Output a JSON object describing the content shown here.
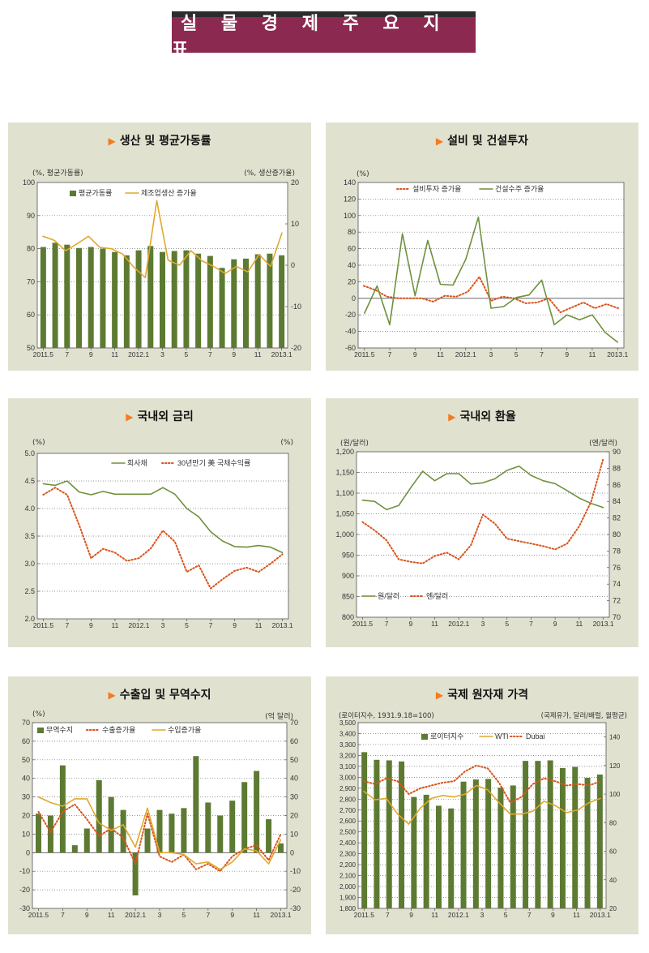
{
  "banner": {
    "title": "실 물 경 제 주 요 지 표"
  },
  "colors": {
    "bar": "#5d7a32",
    "gold": "#e0a82e",
    "green": "#6f913d",
    "red": "#d9541c",
    "panel_bg": "#e1e1d0",
    "plot_bg": "#ffffff",
    "banner_bg": "#8b2950"
  },
  "charts": {
    "production": {
      "title": "생산 및 평균가동률",
      "unit_left": "(%, 평균가동률)",
      "unit_right": "(%, 생산증가율)",
      "chart_data": {
        "type": "bar+line",
        "title": "생산 및 평균가동률",
        "x_labels": [
          "2011.5",
          "7",
          "9",
          "11",
          "2012.1",
          "3",
          "5",
          "7",
          "9",
          "11",
          "2013.1"
        ],
        "left_axis": {
          "range": [
            50,
            100
          ],
          "ticks": [
            50,
            60,
            70,
            80,
            90,
            100
          ]
        },
        "right_axis": {
          "range": [
            -20,
            20
          ],
          "ticks": [
            -20,
            -10,
            0,
            10,
            20
          ]
        },
        "series": [
          {
            "name": "평균가동률",
            "type": "bar",
            "axis": "left",
            "values": [
              80.5,
              81.8,
              81.2,
              80.2,
              80.5,
              80.0,
              79.0,
              78.0,
              79.5,
              80.8,
              79.0,
              79.3,
              79.5,
              78.5,
              77.8,
              74.2,
              76.8,
              77.0,
              78.3,
              78.5,
              78.0
            ]
          },
          {
            "name": "제조업생산 증가율",
            "type": "line",
            "axis": "right",
            "values": [
              7.0,
              6.0,
              3.5,
              5.2,
              7.0,
              4.3,
              4.0,
              2.7,
              -0.5,
              -3.0,
              15.6,
              1.2,
              0.0,
              3.5,
              1.0,
              -0.3,
              -2.0,
              -0.3,
              -1.6,
              2.6,
              -0.3,
              7.8
            ]
          }
        ]
      }
    },
    "investment": {
      "title": "설비 및 건설투자",
      "unit_left": "(%)",
      "chart_data": {
        "type": "line",
        "title": "설비 및 건설투자",
        "x_labels": [
          "2011.5",
          "7",
          "9",
          "11",
          "2012.1",
          "3",
          "5",
          "7",
          "9",
          "11",
          "2013.1"
        ],
        "left_axis": {
          "range": [
            -60,
            140
          ],
          "ticks": [
            -60,
            -40,
            -20,
            0,
            20,
            40,
            60,
            80,
            100,
            120,
            140
          ]
        },
        "series": [
          {
            "name": "설비투자 증가율",
            "type": "dotted",
            "values": [
              15,
              10,
              2,
              0,
              0,
              0,
              -4,
              3,
              2,
              8,
              26,
              -3,
              2,
              0,
              -6,
              -5,
              0,
              -17,
              -11,
              -5,
              -12,
              -7,
              -12
            ]
          },
          {
            "name": "건설수주 증가율",
            "type": "line",
            "values": [
              -18,
              15,
              -32,
              78,
              3,
              70,
              17,
              16,
              47,
              98,
              -12,
              -10,
              1,
              4,
              22,
              -32,
              -20,
              -26,
              -20,
              -41,
              -53
            ]
          }
        ]
      }
    },
    "interest": {
      "title": "국내외 금리",
      "unit_left": "(%)",
      "unit_right": "(%)",
      "chart_data": {
        "type": "line",
        "title": "국내외 금리",
        "x_labels": [
          "2011.5",
          "7",
          "9",
          "11",
          "2012.1",
          "3",
          "5",
          "7",
          "9",
          "11",
          "2013.1"
        ],
        "left_axis": {
          "range": [
            2.0,
            5.0
          ],
          "ticks": [
            2.0,
            2.5,
            3.0,
            3.5,
            4.0,
            4.5,
            5.0
          ]
        },
        "series": [
          {
            "name": "회사채",
            "type": "line",
            "values": [
              4.45,
              4.42,
              4.5,
              4.3,
              4.25,
              4.31,
              4.26,
              4.26,
              4.26,
              4.26,
              4.38,
              4.26,
              4.0,
              3.85,
              3.58,
              3.41,
              3.31,
              3.3,
              3.33,
              3.3,
              3.2
            ]
          },
          {
            "name": "30년만기 美 국채수익률",
            "type": "dotted",
            "values": [
              4.25,
              4.38,
              4.25,
              3.7,
              3.1,
              3.27,
              3.2,
              3.05,
              3.1,
              3.28,
              3.6,
              3.4,
              2.85,
              2.97,
              2.55,
              2.72,
              2.87,
              2.93,
              2.85,
              3.0,
              3.17
            ]
          }
        ]
      }
    },
    "exchange": {
      "title": "국내외 환율",
      "unit_left": "(원/달러)",
      "unit_right": "(엔/달러)",
      "chart_data": {
        "type": "line",
        "title": "국내외 환율",
        "x_labels": [
          "2011.5",
          "7",
          "9",
          "11",
          "2012.1",
          "3",
          "5",
          "7",
          "9",
          "11",
          "2013.1"
        ],
        "left_axis": {
          "range": [
            800,
            1200
          ],
          "ticks": [
            800,
            850,
            900,
            950,
            1000,
            1050,
            1100,
            1150,
            1200
          ]
        },
        "right_axis": {
          "range": [
            70,
            90
          ],
          "ticks": [
            70,
            72,
            74,
            76,
            78,
            80,
            82,
            84,
            86,
            88,
            90
          ]
        },
        "series": [
          {
            "name": "원/달러",
            "type": "line",
            "axis": "left",
            "values": [
              1083,
              1080,
              1060,
              1070,
              1113,
              1153,
              1130,
              1147,
              1147,
              1122,
              1125,
              1135,
              1155,
              1165,
              1143,
              1130,
              1123,
              1106,
              1088,
              1075,
              1065
            ]
          },
          {
            "name": "엔/달러",
            "type": "dotted",
            "axis": "right",
            "values": [
              81.5,
              80.5,
              79.3,
              77.0,
              76.7,
              76.5,
              77.4,
              77.8,
              77.0,
              78.7,
              82.4,
              81.3,
              79.5,
              79.2,
              78.9,
              78.6,
              78.2,
              78.9,
              81.0,
              84.0,
              89.2
            ]
          }
        ]
      }
    },
    "trade": {
      "title": "수출입 및 무역수지",
      "unit_left": "(%)",
      "unit_right": "(억 달러)",
      "chart_data": {
        "type": "bar+line",
        "title": "수출입 및 무역수지",
        "x_labels": [
          "2011.5",
          "7",
          "9",
          "11",
          "2012.1",
          "3",
          "5",
          "7",
          "9",
          "11",
          "2013.1"
        ],
        "left_axis": {
          "range": [
            -30,
            70
          ],
          "ticks": [
            -30,
            -20,
            -10,
            0,
            10,
            20,
            30,
            40,
            50,
            60,
            70
          ]
        },
        "right_axis": {
          "range": [
            -30,
            70
          ],
          "ticks": [
            -30,
            -20,
            -10,
            0,
            10,
            20,
            30,
            40,
            50,
            60,
            70
          ]
        },
        "series": [
          {
            "name": "무역수지",
            "type": "bar",
            "axis": "right",
            "values": [
              21,
              20,
              47,
              4,
              13,
              39,
              30,
              23,
              -23,
              13,
              23,
              21,
              24,
              52,
              27,
              20,
              28,
              38,
              44,
              18,
              5
            ]
          },
          {
            "name": "수출증가율",
            "type": "dotted",
            "axis": "left",
            "values": [
              22,
              11,
              22,
              26,
              18,
              9,
              13,
              8,
              -6,
              21,
              -2,
              -5,
              -1,
              -9,
              -6,
              -10,
              -2,
              2,
              4,
              -4,
              10
            ]
          },
          {
            "name": "수입증가율",
            "type": "line",
            "axis": "left",
            "values": [
              30,
              27,
              25,
              29,
              29,
              16,
              12,
              15,
              3,
              24,
              0,
              0,
              -1,
              -6,
              -5,
              -9,
              -5,
              2,
              1,
              -6,
              7
            ]
          }
        ]
      }
    },
    "commodity": {
      "title": "국제 원자재 가격",
      "unit_left": "(로이터지수, 1931.9.18=100)",
      "unit_right": "(국제유가, 달러/배럴, 월평균)",
      "chart_data": {
        "type": "bar+line",
        "title": "국제 원자재 가격",
        "x_labels": [
          "2011.5",
          "7",
          "9",
          "11",
          "2012.1",
          "3",
          "5",
          "7",
          "9",
          "11",
          "2013.1"
        ],
        "left_axis": {
          "range": [
            1800,
            3500
          ],
          "ticks": [
            1800,
            1900,
            2000,
            2100,
            2200,
            2300,
            2400,
            2500,
            2600,
            2700,
            2800,
            2900,
            3000,
            3100,
            3200,
            3300,
            3400,
            3500
          ]
        },
        "right_axis": {
          "range": [
            20,
            150
          ],
          "ticks": [
            20,
            40,
            60,
            80,
            100,
            120,
            140
          ]
        },
        "series": [
          {
            "name": "로이터지수",
            "type": "bar",
            "axis": "left",
            "values": [
              3230,
              3160,
              3155,
              3145,
              2820,
              2840,
              2740,
              2715,
              2960,
              2980,
              2985,
              2905,
              2925,
              3150,
              3150,
              3155,
              3085,
              3095,
              2995,
              3025
            ]
          },
          {
            "name": "WTI",
            "type": "line",
            "axis": "right",
            "values": [
              102,
              96,
              97,
              86,
              79,
              90,
              97,
              99,
              98,
              100,
              106,
              103,
              94,
              86,
              86,
              88,
              95,
              92,
              87,
              89,
              94,
              97
            ]
          },
          {
            "name": "Dubai",
            "type": "dotted",
            "axis": "right",
            "values": [
              109,
              107,
              111,
              109,
              100,
              104,
              106,
              108,
              109,
              116,
              120,
              118,
              108,
              94,
              98,
              107,
              111,
              109,
              106,
              107,
              106,
              109
            ]
          }
        ]
      }
    }
  }
}
